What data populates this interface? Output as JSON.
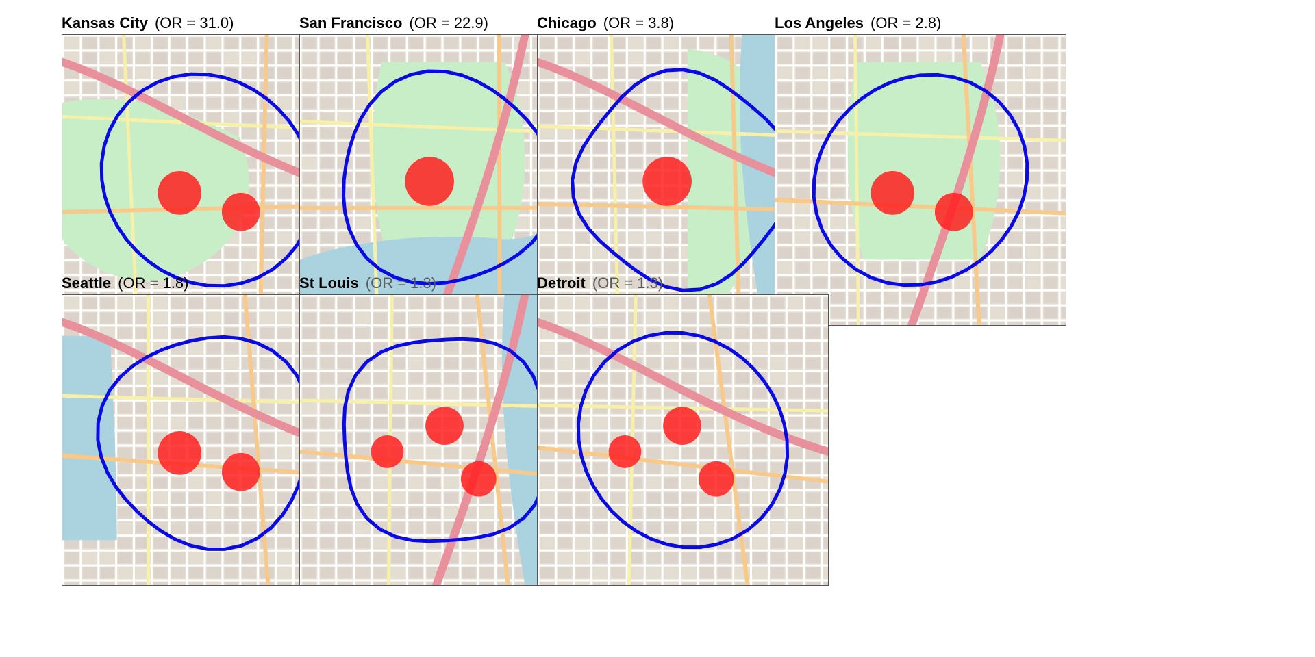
{
  "panels": [
    {
      "city": "Kansas City",
      "or_text": "(OR = 31.0)",
      "or_value": 31.0,
      "or_dimmed": false,
      "water": "none",
      "park": "left",
      "venues": 2
    },
    {
      "city": "San Francisco",
      "or_text": "(OR = 22.9)",
      "or_value": 22.9,
      "or_dimmed": false,
      "water": "bay",
      "park": "center",
      "venues": 1
    },
    {
      "city": "Chicago",
      "or_text": "(OR = 3.8)",
      "or_value": 3.8,
      "or_dimmed": false,
      "water": "right",
      "park": "right",
      "venues": 1
    },
    {
      "city": "Los Angeles",
      "or_text": "(OR = 2.8)",
      "or_value": 2.8,
      "or_dimmed": false,
      "water": "none",
      "park": "center",
      "venues": 2
    },
    {
      "city": "Seattle",
      "or_text": "(OR = 1.8)",
      "or_value": 1.8,
      "or_dimmed": false,
      "water": "left",
      "park": "none",
      "venues": 2
    },
    {
      "city": "St Louis",
      "or_text": "(OR = 1.3)",
      "or_value": 1.3,
      "or_dimmed": true,
      "water": "right",
      "park": "none",
      "venues": 3
    },
    {
      "city": "Detroit",
      "or_text": "(OR = 1.3)",
      "or_value": 1.3,
      "or_dimmed": true,
      "water": "none",
      "park": "none",
      "venues": 3
    }
  ],
  "colors": {
    "boundary": "#0a0ae6",
    "venue": "#ff2020",
    "water": "#aad3df",
    "park": "#c8eec8",
    "urban": "#e4ded2",
    "block": "#d9d0c9",
    "road_major": "#e8909c",
    "road_primary": "#f7c98a",
    "road_secondary": "#f6f0a8",
    "road_minor": "#ffffff"
  }
}
